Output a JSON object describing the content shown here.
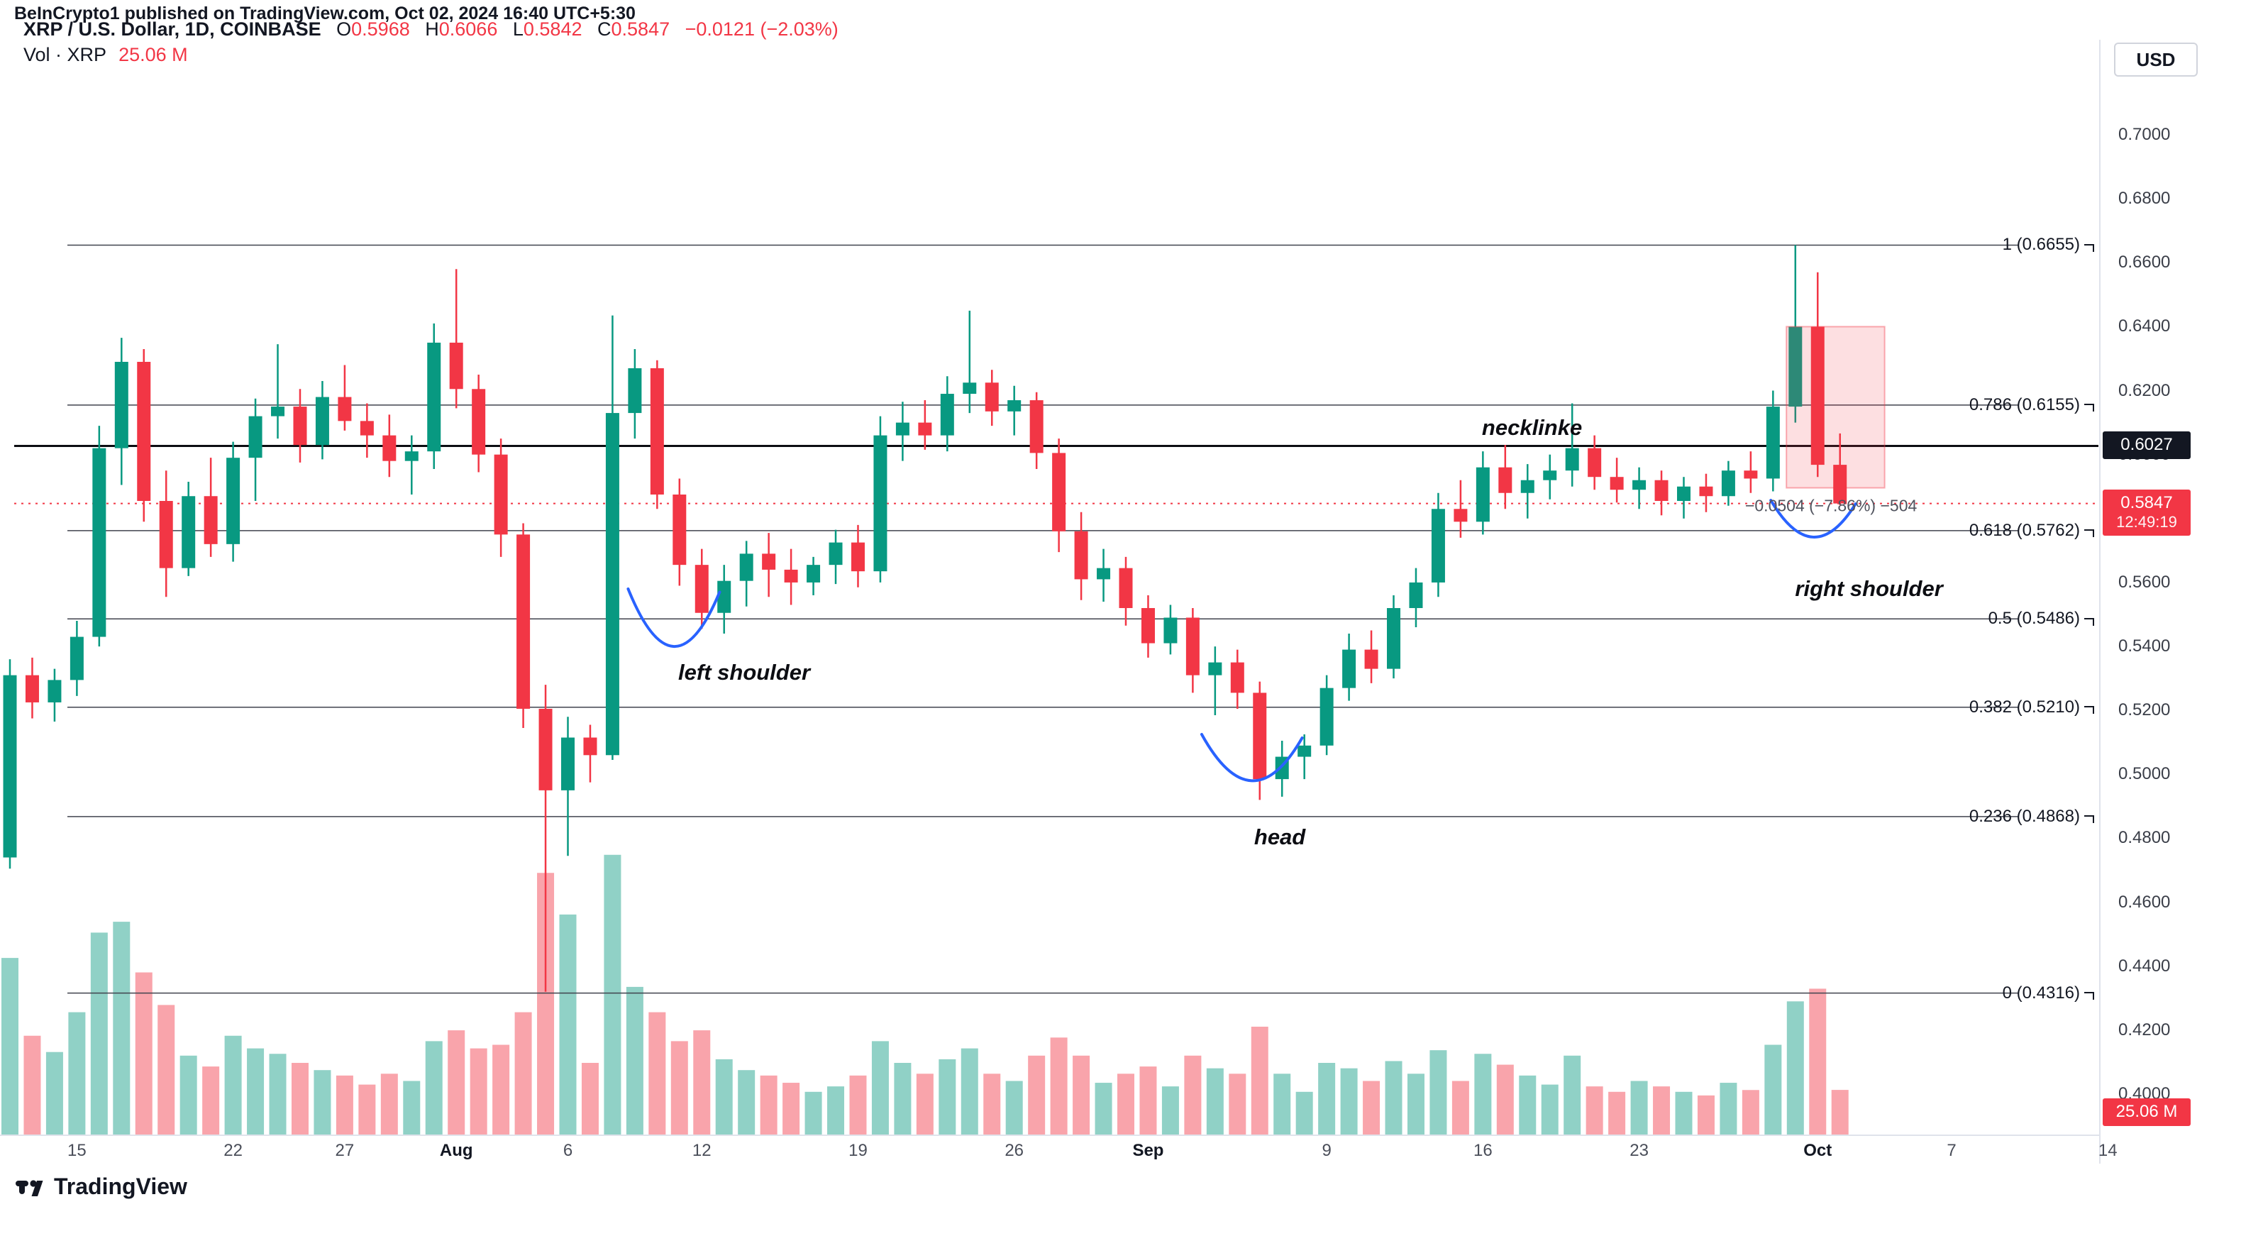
{
  "attribution": "BeInCrypto1 published on TradingView.com, Oct 02, 2024 16:40 UTC+5:30",
  "legend": {
    "symbol": "XRP / U.S. Dollar, 1D, COINBASE",
    "ohlc": [
      {
        "label": "O",
        "value": "0.5968"
      },
      {
        "label": "H",
        "value": "0.6066"
      },
      {
        "label": "L",
        "value": "0.5842"
      },
      {
        "label": "C",
        "value": "0.5847"
      }
    ],
    "change": "−0.0121 (−2.03%)",
    "volume_label": "Vol · XRP",
    "volume_value": "25.06 M"
  },
  "toolbar": {
    "currency": "USD"
  },
  "badges": {
    "neckline_price": "0.6027",
    "last_price": "0.5847",
    "countdown": "12:49:19",
    "volume": "25.06 M"
  },
  "footer": {
    "logo_text": "TradingView"
  },
  "chart_data": {
    "type": "candlestick",
    "symbol": "XRP/USD",
    "interval": "1D",
    "exchange": "COINBASE",
    "ylim": [
      0.4,
      0.7
    ],
    "grid": false,
    "neckline_price": 0.6027,
    "last_price": 0.5847,
    "colors": {
      "up": "#089981",
      "down": "#F23645",
      "vol_up": "rgba(8,153,129,0.45)",
      "vol_down": "rgba(242,54,69,0.45)",
      "accent_blue": "#2962FF",
      "box_fill": "rgba(242,54,69,0.16)",
      "box_stroke": "rgba(242,54,69,0.40)",
      "fib_line": "#40434e",
      "neckline": "#0c0d12"
    },
    "price_axis_ticks": [
      "0.7000",
      "0.6800",
      "0.6600",
      "0.6400",
      "0.6200",
      "0.6000",
      "0.5800",
      "0.5600",
      "0.5400",
      "0.5200",
      "0.5000",
      "0.4800",
      "0.4600",
      "0.4400",
      "0.4200",
      "0.4000"
    ],
    "time_axis_ticks": [
      {
        "label": "15",
        "i": 3
      },
      {
        "label": "22",
        "i": 10
      },
      {
        "label": "27",
        "i": 15
      },
      {
        "label": "Aug",
        "i": 20,
        "major": true
      },
      {
        "label": "6",
        "i": 25
      },
      {
        "label": "12",
        "i": 31
      },
      {
        "label": "19",
        "i": 38
      },
      {
        "label": "26",
        "i": 45
      },
      {
        "label": "Sep",
        "i": 51,
        "major": true
      },
      {
        "label": "9",
        "i": 59
      },
      {
        "label": "16",
        "i": 66
      },
      {
        "label": "23",
        "i": 73
      },
      {
        "label": "Oct",
        "i": 81,
        "major": true
      },
      {
        "label": "7",
        "i": 87
      },
      {
        "label": "14",
        "i": 94
      }
    ],
    "fib_levels": [
      {
        "label": "1 (0.6655)",
        "price": 0.6655
      },
      {
        "label": "0.786 (0.6155)",
        "price": 0.6155
      },
      {
        "label": "0.618 (0.5762)",
        "price": 0.5762
      },
      {
        "label": "0.5 (0.5486)",
        "price": 0.5486
      },
      {
        "label": "0.382 (0.5210)",
        "price": 0.521
      },
      {
        "label": "0.236 (0.4868)",
        "price": 0.4868
      },
      {
        "label": "0 (0.4316)",
        "price": 0.4316
      }
    ],
    "annotations": [
      {
        "name": "neckline-label",
        "text": "necklinke",
        "i": 68.2,
        "p": 0.6084,
        "cls": ""
      },
      {
        "name": "left-shoulder-label",
        "text": "left shoulder",
        "i": 32.9,
        "p": 0.5318,
        "cls": ""
      },
      {
        "name": "head-label",
        "text": "head",
        "i": 56.9,
        "p": 0.4803,
        "cls": ""
      },
      {
        "name": "right-shoulder-label",
        "text": "right shoulder",
        "i": 83.3,
        "p": 0.558,
        "cls": ""
      },
      {
        "name": "measure-label",
        "text": "−0.0504 (−7.86%) −504",
        "i": 81.6,
        "p": 0.584,
        "cls": "measure"
      }
    ],
    "drawings": [
      {
        "type": "arc",
        "name": "left-shoulder-arc",
        "i1": 27.7,
        "p1": 0.558,
        "i2": 31.8,
        "p2": 0.557,
        "p_dip": 0.54
      },
      {
        "type": "arc",
        "name": "head-arc",
        "i1": 53.4,
        "p1": 0.5125,
        "i2": 57.9,
        "p2": 0.5114,
        "p_dip": 0.498
      },
      {
        "type": "arc",
        "name": "right-shoulder-arc",
        "i1": 78.9,
        "p1": 0.5857,
        "i2": 82.7,
        "p2": 0.5846,
        "p_dip": 0.5742
      }
    ],
    "measure_box": {
      "i_from": 79.6,
      "i_to": 84.0,
      "top": 0.64,
      "bottom": 0.5896,
      "label": "−0.0504 (−7.86%) −504"
    },
    "candles": [
      [
        "Jul 12",
        0.474,
        0.536,
        0.4705,
        0.531,
        98
      ],
      [
        "Jul 13",
        0.531,
        0.5365,
        0.5175,
        0.5225,
        55
      ],
      [
        "Jul 14",
        0.5225,
        0.533,
        0.5165,
        0.5295,
        46
      ],
      [
        "Jul 15",
        0.5295,
        0.548,
        0.5245,
        0.543,
        68
      ],
      [
        "Jul 16",
        0.543,
        0.609,
        0.54,
        0.602,
        112
      ],
      [
        "Jul 17",
        0.602,
        0.6365,
        0.5905,
        0.629,
        118
      ],
      [
        "Jul 18",
        0.629,
        0.633,
        0.579,
        0.5855,
        90
      ],
      [
        "Jul 19",
        0.5855,
        0.595,
        0.5555,
        0.5645,
        72
      ],
      [
        "Jul 20",
        0.5645,
        0.5915,
        0.562,
        0.587,
        44
      ],
      [
        "Jul 21",
        0.587,
        0.599,
        0.568,
        0.572,
        38
      ],
      [
        "Jul 22",
        0.572,
        0.604,
        0.5665,
        0.599,
        55
      ],
      [
        "Jul 23",
        0.599,
        0.6175,
        0.5855,
        0.612,
        48
      ],
      [
        "Jul 24",
        0.612,
        0.6345,
        0.605,
        0.615,
        45
      ],
      [
        "Jul 25",
        0.615,
        0.6205,
        0.5975,
        0.603,
        40
      ],
      [
        "Jul 26",
        0.603,
        0.623,
        0.5985,
        0.618,
        36
      ],
      [
        "Jul 27",
        0.618,
        0.628,
        0.6075,
        0.6105,
        33
      ],
      [
        "Jul 28",
        0.6105,
        0.616,
        0.599,
        0.606,
        28
      ],
      [
        "Jul 29",
        0.606,
        0.6125,
        0.593,
        0.598,
        34
      ],
      [
        "Jul 30",
        0.598,
        0.606,
        0.5875,
        0.601,
        30
      ],
      [
        "Jul 31",
        0.601,
        0.641,
        0.5955,
        0.635,
        52
      ],
      [
        "Aug 1",
        0.635,
        0.658,
        0.6145,
        0.6205,
        58
      ],
      [
        "Aug 2",
        0.6205,
        0.625,
        0.5945,
        0.6,
        48
      ],
      [
        "Aug 3",
        0.6,
        0.605,
        0.568,
        0.575,
        50
      ],
      [
        "Aug 4",
        0.575,
        0.5785,
        0.5145,
        0.5205,
        68
      ],
      [
        "Aug 5",
        0.5205,
        0.528,
        0.432,
        0.495,
        145
      ],
      [
        "Aug 6",
        0.495,
        0.518,
        0.4745,
        0.5115,
        122
      ],
      [
        "Aug 7",
        0.5115,
        0.5155,
        0.4975,
        0.506,
        40
      ],
      [
        "Aug 8",
        0.506,
        0.6435,
        0.5045,
        0.613,
        155
      ],
      [
        "Aug 9",
        0.613,
        0.633,
        0.605,
        0.627,
        82
      ],
      [
        "Aug 10",
        0.627,
        0.6295,
        0.583,
        0.5875,
        68
      ],
      [
        "Aug 11",
        0.5875,
        0.5925,
        0.559,
        0.5655,
        52
      ],
      [
        "Aug 12",
        0.5655,
        0.5705,
        0.5455,
        0.5505,
        58
      ],
      [
        "Aug 13",
        0.5505,
        0.5655,
        0.544,
        0.5605,
        42
      ],
      [
        "Aug 14",
        0.5605,
        0.573,
        0.5525,
        0.569,
        36
      ],
      [
        "Aug 15",
        0.569,
        0.5755,
        0.5555,
        0.564,
        33
      ],
      [
        "Aug 16",
        0.564,
        0.5705,
        0.553,
        0.56,
        29
      ],
      [
        "Aug 17",
        0.56,
        0.568,
        0.556,
        0.5655,
        24
      ],
      [
        "Aug 18",
        0.5655,
        0.5765,
        0.5595,
        0.5725,
        27
      ],
      [
        "Aug 19",
        0.5725,
        0.578,
        0.5585,
        0.5635,
        33
      ],
      [
        "Aug 20",
        0.5635,
        0.612,
        0.56,
        0.606,
        52
      ],
      [
        "Aug 21",
        0.606,
        0.6165,
        0.598,
        0.61,
        40
      ],
      [
        "Aug 22",
        0.61,
        0.617,
        0.6015,
        0.606,
        34
      ],
      [
        "Aug 23",
        0.606,
        0.6245,
        0.601,
        0.619,
        42
      ],
      [
        "Aug 24",
        0.619,
        0.645,
        0.613,
        0.6225,
        48
      ],
      [
        "Aug 25",
        0.6225,
        0.6265,
        0.609,
        0.6135,
        34
      ],
      [
        "Aug 26",
        0.6135,
        0.6215,
        0.606,
        0.617,
        30
      ],
      [
        "Aug 27",
        0.617,
        0.6195,
        0.5955,
        0.6005,
        44
      ],
      [
        "Aug 28",
        0.6005,
        0.605,
        0.5695,
        0.576,
        54
      ],
      [
        "Aug 29",
        0.576,
        0.582,
        0.5545,
        0.561,
        44
      ],
      [
        "Aug 30",
        0.561,
        0.5705,
        0.554,
        0.5645,
        29
      ],
      [
        "Aug 31",
        0.5645,
        0.568,
        0.5465,
        0.552,
        34
      ],
      [
        "Sep 1",
        0.552,
        0.556,
        0.5365,
        0.541,
        38
      ],
      [
        "Sep 2",
        0.541,
        0.553,
        0.5375,
        0.549,
        27
      ],
      [
        "Sep 3",
        0.549,
        0.552,
        0.5255,
        0.531,
        44
      ],
      [
        "Sep 4",
        0.531,
        0.54,
        0.5185,
        0.535,
        37
      ],
      [
        "Sep 5",
        0.535,
        0.539,
        0.5205,
        0.5255,
        34
      ],
      [
        "Sep 6",
        0.5255,
        0.529,
        0.492,
        0.4985,
        60
      ],
      [
        "Sep 7",
        0.4985,
        0.5105,
        0.493,
        0.5055,
        34
      ],
      [
        "Sep 8",
        0.5055,
        0.5125,
        0.4985,
        0.509,
        24
      ],
      [
        "Sep 9",
        0.509,
        0.531,
        0.506,
        0.527,
        40
      ],
      [
        "Sep 10",
        0.527,
        0.544,
        0.523,
        0.539,
        37
      ],
      [
        "Sep 11",
        0.539,
        0.545,
        0.5285,
        0.533,
        30
      ],
      [
        "Sep 12",
        0.533,
        0.556,
        0.53,
        0.552,
        41
      ],
      [
        "Sep 13",
        0.552,
        0.5645,
        0.546,
        0.56,
        34
      ],
      [
        "Sep 14",
        0.56,
        0.588,
        0.5555,
        0.583,
        47
      ],
      [
        "Sep 15",
        0.583,
        0.592,
        0.574,
        0.579,
        30
      ],
      [
        "Sep 16",
        0.579,
        0.601,
        0.575,
        0.596,
        45
      ],
      [
        "Sep 17",
        0.596,
        0.603,
        0.583,
        0.588,
        39
      ],
      [
        "Sep 18",
        0.588,
        0.597,
        0.58,
        0.592,
        33
      ],
      [
        "Sep 19",
        0.592,
        0.6,
        0.586,
        0.595,
        28
      ],
      [
        "Sep 20",
        0.595,
        0.616,
        0.59,
        0.602,
        44
      ],
      [
        "Sep 21",
        0.602,
        0.606,
        0.589,
        0.593,
        27
      ],
      [
        "Sep 22",
        0.593,
        0.599,
        0.585,
        0.589,
        24
      ],
      [
        "Sep 23",
        0.589,
        0.596,
        0.583,
        0.592,
        30
      ],
      [
        "Sep 24",
        0.592,
        0.595,
        0.581,
        0.5855,
        27
      ],
      [
        "Sep 25",
        0.5855,
        0.593,
        0.58,
        0.59,
        24
      ],
      [
        "Sep 26",
        0.59,
        0.594,
        0.582,
        0.587,
        22
      ],
      [
        "Sep 27",
        0.587,
        0.598,
        0.584,
        0.595,
        29
      ],
      [
        "Sep 28",
        0.595,
        0.601,
        0.588,
        0.5925,
        25
      ],
      [
        "Sep 29",
        0.5925,
        0.62,
        0.5885,
        0.615,
        50
      ],
      [
        "Sep 30",
        0.615,
        0.6655,
        0.61,
        0.64,
        74
      ],
      [
        "Oct 1",
        0.64,
        0.657,
        0.593,
        0.5968,
        81
      ],
      [
        "Oct 2",
        0.5968,
        0.6066,
        0.5842,
        0.5847,
        25.06
      ]
    ]
  }
}
